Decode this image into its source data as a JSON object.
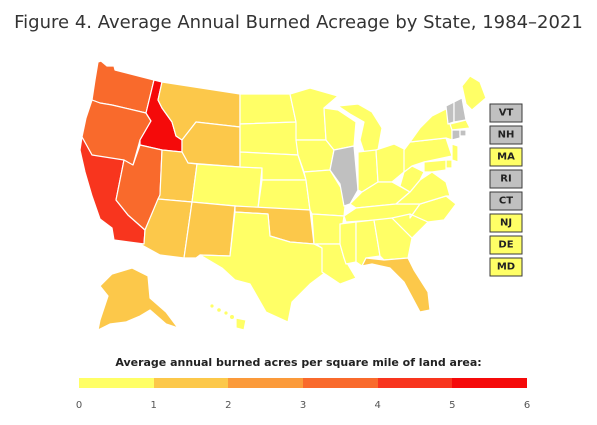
{
  "title": "Figure 4. Average Annual Burned Acreage by State, 1984–2021",
  "legend": {
    "title": "Average annual burned acres per square mile of land area:",
    "ticks": [
      "0",
      "1",
      "2",
      "3",
      "4",
      "5",
      "6"
    ],
    "colors": [
      "#ffff66",
      "#fcc84a",
      "#fb9a3a",
      "#f96a2c",
      "#f8351e",
      "#f50a0a"
    ]
  },
  "categories": {
    "no_data": "#c0c0c0",
    "0-1": "#ffff66",
    "1-2": "#fcc84a",
    "2-3": "#fb9a3a",
    "3-4": "#f96a2c",
    "4-5": "#f8351e",
    "5-6": "#f50a0a"
  },
  "states": {
    "WA": "3-4",
    "OR": "3-4",
    "CA": "4-5",
    "ID": "5-6",
    "NV": "3-4",
    "AZ": "1-2",
    "UT": "1-2",
    "MT": "1-2",
    "WY": "1-2",
    "CO": "0-1",
    "NM": "1-2",
    "ND": "0-1",
    "SD": "0-1",
    "NE": "0-1",
    "KS": "0-1",
    "OK": "1-2",
    "TX": "0-1",
    "MN": "0-1",
    "IA": "0-1",
    "MO": "0-1",
    "AR": "0-1",
    "LA": "0-1",
    "WI": "0-1",
    "IL": "no_data",
    "IN": "0-1",
    "MI": "0-1",
    "OH": "0-1",
    "KY": "0-1",
    "TN": "0-1",
    "MS": "0-1",
    "AL": "0-1",
    "GA": "0-1",
    "FL": "1-2",
    "SC": "0-1",
    "NC": "0-1",
    "VA": "0-1",
    "WV": "0-1",
    "PA": "0-1",
    "NY": "0-1",
    "ME": "0-1",
    "AK": "1-2",
    "HI": "0-1"
  },
  "small_states": [
    {
      "code": "VT",
      "value": "no_data"
    },
    {
      "code": "NH",
      "value": "no_data"
    },
    {
      "code": "MA",
      "value": "0-1"
    },
    {
      "code": "RI",
      "value": "no_data"
    },
    {
      "code": "CT",
      "value": "no_data"
    },
    {
      "code": "NJ",
      "value": "0-1"
    },
    {
      "code": "DE",
      "value": "0-1"
    },
    {
      "code": "MD",
      "value": "0-1"
    }
  ]
}
